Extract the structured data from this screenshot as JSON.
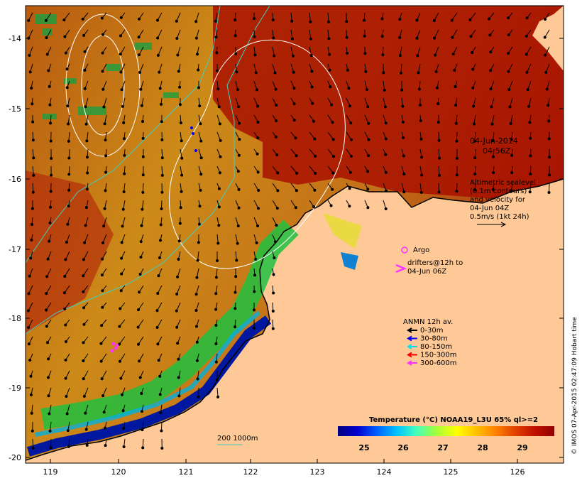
{
  "map": {
    "longitude_ticks": [
      "119",
      "120",
      "121",
      "122",
      "123",
      "124",
      "125",
      "126"
    ],
    "latitude_ticks": [
      "-14",
      "-15",
      "-16",
      "-17",
      "-18",
      "-19",
      "-20"
    ],
    "date_label": "04-Jun-2014",
    "time_label": "04:56Z",
    "altimetry_lines": [
      "Altimetric sealevel",
      "(0.1m contours)",
      "and velocity for",
      "04-Jun 04Z",
      "0.5m/s (1kt 24h)"
    ],
    "argo_label": "Argo",
    "drifter_lines": [
      "drifters@12h to",
      "04-Jun 06Z"
    ],
    "anmn_title": "ANMN 12h av.",
    "anmn_legend": [
      {
        "label": "0-30m",
        "color": "#000000"
      },
      {
        "label": "30-80m",
        "color": "#0000ff"
      },
      {
        "label": "80-150m",
        "color": "#00e5e5"
      },
      {
        "label": "150-300m",
        "color": "#ff0000"
      },
      {
        "label": "300-600m",
        "color": "#ff33ff"
      }
    ],
    "isobath_label": "200  1000m",
    "colorbar": {
      "title": "Temperature (°C) NOAA19_L3U 65% ql>=2",
      "ticks": [
        "25",
        "26",
        "27",
        "28",
        "29"
      ],
      "colors": [
        "#000080",
        "#0000d0",
        "#0060ff",
        "#00c0ff",
        "#40ffc0",
        "#a0ff40",
        "#ffff00",
        "#ffc000",
        "#ff8000",
        "#e04000",
        "#c01000",
        "#900000"
      ]
    },
    "credit": "© IMOS 07-Apr-2015 02:47:09 Hobart time",
    "colors": {
      "land": "#fec897",
      "warm_sea": "#d08a10",
      "hot_sea": "#a01000",
      "cool_sea": "#10a040",
      "cold_sea": "#0018a0",
      "isobath": "#40d0c0"
    }
  }
}
